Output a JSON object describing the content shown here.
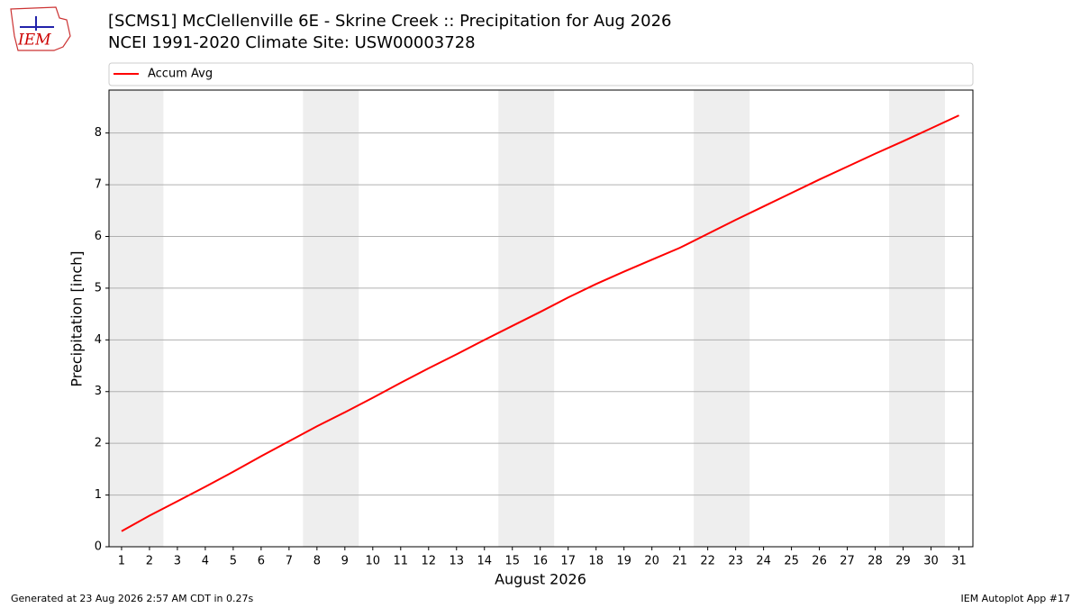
{
  "logo": "IEM",
  "footer_left": "Generated at 23 Aug 2026 2:57 AM CDT in 0.27s",
  "footer_right": "IEM Autoplot App #17",
  "chart_data": {
    "type": "line",
    "title": "[SCMS1] McClellenville 6E - Skrine Creek :: Precipitation for Aug 2026",
    "subtitle": "NCEI 1991-2020 Climate Site: USW00003728",
    "x_label": "August 2026",
    "y_label": "Precipitation [inch]",
    "x": [
      1,
      2,
      3,
      4,
      5,
      6,
      7,
      8,
      9,
      10,
      11,
      12,
      13,
      14,
      15,
      16,
      17,
      18,
      19,
      20,
      21,
      22,
      23,
      24,
      25,
      26,
      27,
      28,
      29,
      30,
      31
    ],
    "series": [
      {
        "name": "Accum Avg",
        "color": "#ff0000",
        "values": [
          0.3,
          0.6,
          0.88,
          1.16,
          1.45,
          1.75,
          2.04,
          2.33,
          2.6,
          2.88,
          3.17,
          3.45,
          3.72,
          4.0,
          4.27,
          4.54,
          4.82,
          5.08,
          5.32,
          5.55,
          5.78,
          6.05,
          6.32,
          6.58,
          6.84,
          7.1,
          7.35,
          7.6,
          7.84,
          8.09,
          8.34
        ]
      }
    ],
    "xlim": [
      0.55,
      31.5
    ],
    "ylim": [
      0,
      8.83
    ],
    "xticks": [
      1,
      2,
      3,
      4,
      5,
      6,
      7,
      8,
      9,
      10,
      11,
      12,
      13,
      14,
      15,
      16,
      17,
      18,
      19,
      20,
      21,
      22,
      23,
      24,
      25,
      26,
      27,
      28,
      29,
      30,
      31
    ],
    "yticks": [
      0,
      1,
      2,
      3,
      4,
      5,
      6,
      7,
      8
    ],
    "weekend_spans": [
      [
        0.5,
        2.5
      ],
      [
        7.5,
        9.5
      ],
      [
        14.5,
        16.5
      ],
      [
        21.5,
        23.5
      ],
      [
        28.5,
        30.5
      ]
    ],
    "weekend_color": "#eeeeee",
    "grid": "y",
    "legend": "top"
  }
}
